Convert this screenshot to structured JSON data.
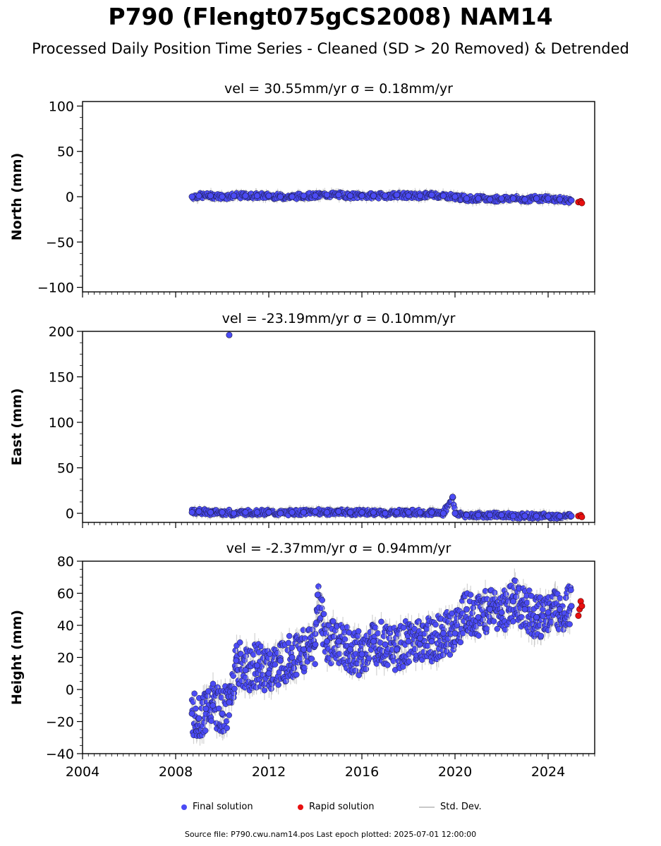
{
  "title": "P790 (Flengt075gCS2008) NAM14",
  "subtitle": "Processed Daily Position Time Series - Cleaned (SD > 20 Removed) & Detrended",
  "legend": {
    "final": "Final solution",
    "rapid": "Rapid solution",
    "std": "Std. Dev."
  },
  "footer": "Source file: P790.cwu.nam14.pos  Last epoch plotted: 2025-07-01 12:00:00",
  "colors": {
    "final": "#4b4bf5",
    "rapid": "#e81010",
    "std": "#c8c8c8",
    "marker_edge": "#1a1a40"
  },
  "chart_data": [
    {
      "type": "scatter",
      "panel": "north",
      "title": "vel = 30.55mm/yr   σ = 0.18mm/yr",
      "ylabel": "North (mm)",
      "xlim": [
        2004,
        2026
      ],
      "ylim": [
        -105,
        105
      ],
      "yticks": [
        -100,
        -50,
        0,
        50,
        100
      ],
      "yticklabels": [
        "−100",
        "−50",
        "0",
        "50",
        "100"
      ],
      "series": [
        {
          "name": "Final solution",
          "x": [
            2008.7,
            2009.0,
            2009.5,
            2010.0,
            2010.5,
            2011.0,
            2011.5,
            2012.0,
            2012.5,
            2013.0,
            2013.5,
            2014.0,
            2014.5,
            2015.0,
            2015.5,
            2016.0,
            2016.5,
            2017.0,
            2017.5,
            2018.0,
            2018.5,
            2019.0,
            2019.5,
            2020.0,
            2020.5,
            2021.0,
            2021.5,
            2022.0,
            2022.5,
            2023.0,
            2023.5,
            2024.0,
            2024.5,
            2025.0
          ],
          "y": [
            0,
            1,
            1,
            0,
            1,
            1,
            1,
            1,
            0,
            0,
            1,
            1,
            2,
            2,
            1,
            1,
            1,
            1,
            2,
            1,
            1,
            2,
            1,
            0,
            -2,
            -2,
            -3,
            -2,
            -2,
            -3,
            -2,
            -2,
            -3,
            -4
          ]
        },
        {
          "name": "Rapid solution",
          "x": [
            2025.3,
            2025.4,
            2025.45
          ],
          "y": [
            -6,
            -5,
            -7
          ]
        }
      ]
    },
    {
      "type": "scatter",
      "panel": "east",
      "title": "vel = -23.19mm/yr   σ = 0.10mm/yr",
      "ylabel": "East (mm)",
      "xlim": [
        2004,
        2026
      ],
      "ylim": [
        -10,
        200
      ],
      "yticks": [
        0,
        50,
        100,
        150,
        200
      ],
      "yticklabels": [
        "0",
        "50",
        "100",
        "150",
        "200"
      ],
      "series": [
        {
          "name": "Final solution",
          "x": [
            2008.7,
            2009.0,
            2009.5,
            2010.0,
            2010.3,
            2010.5,
            2011.0,
            2011.5,
            2012.0,
            2012.5,
            2013.0,
            2013.5,
            2014.0,
            2014.5,
            2015.0,
            2015.5,
            2016.0,
            2016.5,
            2017.0,
            2017.5,
            2018.0,
            2018.5,
            2019.0,
            2019.5,
            2019.9,
            2020.0,
            2020.5,
            2021.0,
            2021.5,
            2022.0,
            2022.5,
            2023.0,
            2023.5,
            2024.0,
            2024.5,
            2025.0
          ],
          "y": [
            1,
            2,
            1,
            1,
            196,
            0,
            1,
            1,
            1,
            0,
            1,
            1,
            2,
            1,
            2,
            1,
            1,
            1,
            0,
            1,
            1,
            1,
            1,
            0,
            18,
            0,
            -2,
            -2,
            -2,
            -2,
            -3,
            -3,
            -3,
            -3,
            -3,
            -3
          ]
        },
        {
          "name": "Rapid solution",
          "x": [
            2025.3,
            2025.4,
            2025.45
          ],
          "y": [
            -3,
            -2,
            -4
          ]
        }
      ]
    },
    {
      "type": "scatter",
      "panel": "height",
      "title": "vel = -2.37mm/yr   σ = 0.94mm/yr",
      "ylabel": "Height (mm)",
      "xlim": [
        2004,
        2026
      ],
      "ylim": [
        -40,
        80
      ],
      "yticks": [
        -40,
        -20,
        0,
        20,
        40,
        60,
        80
      ],
      "yticklabels": [
        "−40",
        "−20",
        "0",
        "20",
        "40",
        "60",
        "80"
      ],
      "xticks": [
        2004,
        2008,
        2012,
        2016,
        2020,
        2024
      ],
      "xticklabels": [
        "2004",
        "2008",
        "2012",
        "2016",
        "2020",
        "2024"
      ],
      "series": [
        {
          "name": "Final solution",
          "x": [
            2008.7,
            2009.0,
            2009.3,
            2009.6,
            2010.0,
            2010.3,
            2010.6,
            2011.0,
            2011.5,
            2012.0,
            2012.5,
            2013.0,
            2013.5,
            2014.0,
            2014.1,
            2014.5,
            2015.0,
            2015.5,
            2016.0,
            2016.5,
            2017.0,
            2017.5,
            2018.0,
            2018.5,
            2019.0,
            2019.5,
            2020.0,
            2020.5,
            2021.0,
            2021.5,
            2022.0,
            2022.5,
            2023.0,
            2023.5,
            2024.0,
            2024.5,
            2025.0
          ],
          "y": [
            -15,
            -18,
            -12,
            -10,
            -15,
            -8,
            18,
            12,
            15,
            10,
            18,
            20,
            25,
            28,
            59,
            30,
            30,
            25,
            22,
            30,
            28,
            25,
            30,
            32,
            30,
            35,
            35,
            50,
            45,
            50,
            48,
            55,
            50,
            45,
            48,
            50,
            52
          ]
        },
        {
          "name": "Rapid solution",
          "x": [
            2025.3,
            2025.35,
            2025.4,
            2025.45
          ],
          "y": [
            46,
            50,
            55,
            52
          ]
        }
      ]
    }
  ]
}
